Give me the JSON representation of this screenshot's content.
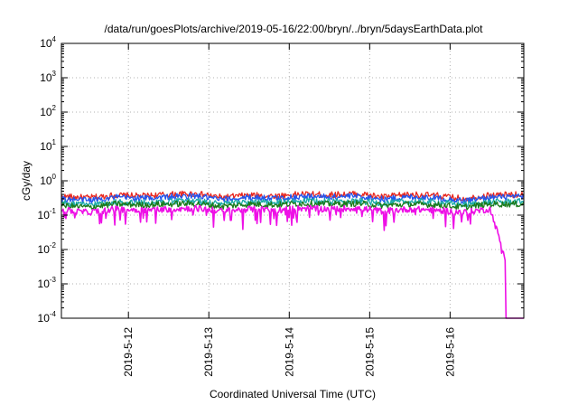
{
  "chart_data": {
    "type": "line",
    "title": "/data/run/goesPlots/archive/2019-05-16/22:00/bryn/../bryn/5daysEarthData.plot",
    "xlabel": "Coordinated Universal Time (UTC)",
    "ylabel": "cGy/day",
    "yscale": "log",
    "ylim": [
      0.0001,
      10000
    ],
    "xlim": [
      "2019-05-11T04:00",
      "2019-05-16T22:00"
    ],
    "x_ticks": [
      "2019-5-12",
      "2019-5-13",
      "2019-5-14",
      "2019-5-15",
      "2019-5-16"
    ],
    "y_ticks": [
      {
        "base": "10",
        "exp": "-4"
      },
      {
        "base": "10",
        "exp": "-3"
      },
      {
        "base": "10",
        "exp": "-2"
      },
      {
        "base": "10",
        "exp": "-1"
      },
      {
        "base": "10",
        "exp": "0"
      },
      {
        "base": "10",
        "exp": "1"
      },
      {
        "base": "10",
        "exp": "2"
      },
      {
        "base": "10",
        "exp": "3"
      },
      {
        "base": "10",
        "exp": "4"
      }
    ],
    "grid": true,
    "legend": "none",
    "x": [
      "2019-05-11T04:00",
      "2019-05-11T12:00",
      "2019-05-11T20:00",
      "2019-05-12T04:00",
      "2019-05-12T12:00",
      "2019-05-12T20:00",
      "2019-05-13T04:00",
      "2019-05-13T12:00",
      "2019-05-13T20:00",
      "2019-05-14T04:00",
      "2019-05-14T12:00",
      "2019-05-14T20:00",
      "2019-05-15T04:00",
      "2019-05-15T12:00",
      "2019-05-15T20:00",
      "2019-05-16T04:00",
      "2019-05-16T12:00",
      "2019-05-16T22:00"
    ],
    "series": [
      {
        "color": "#e8261e",
        "values": [
          0.35,
          0.32,
          0.38,
          0.36,
          0.4,
          0.42,
          0.33,
          0.38,
          0.36,
          0.41,
          0.39,
          0.42,
          0.34,
          0.4,
          0.37,
          0.3,
          0.38,
          0.4
        ]
      },
      {
        "color": "#2255ee",
        "values": [
          0.3,
          0.27,
          0.33,
          0.31,
          0.34,
          0.36,
          0.28,
          0.33,
          0.31,
          0.35,
          0.34,
          0.36,
          0.29,
          0.34,
          0.32,
          0.26,
          0.33,
          0.34
        ]
      },
      {
        "color": "#1aaaa8",
        "values": [
          0.22,
          0.2,
          0.24,
          0.23,
          0.25,
          0.26,
          0.21,
          0.24,
          0.23,
          0.26,
          0.25,
          0.26,
          0.22,
          0.25,
          0.24,
          0.2,
          0.24,
          0.25
        ]
      },
      {
        "color": "#1a7a1a",
        "values": [
          0.19,
          0.17,
          0.21,
          0.2,
          0.21,
          0.22,
          0.18,
          0.21,
          0.2,
          0.22,
          0.21,
          0.22,
          0.19,
          0.21,
          0.2,
          0.17,
          0.21,
          0.21
        ]
      },
      {
        "color": "#ee10e6",
        "values": [
          0.14,
          0.12,
          0.15,
          0.14,
          0.15,
          0.16,
          0.13,
          0.15,
          0.14,
          0.16,
          0.15,
          0.16,
          0.13,
          0.15,
          0.14,
          0.12,
          0.15,
          0.0001
        ]
      }
    ],
    "annotations": []
  }
}
